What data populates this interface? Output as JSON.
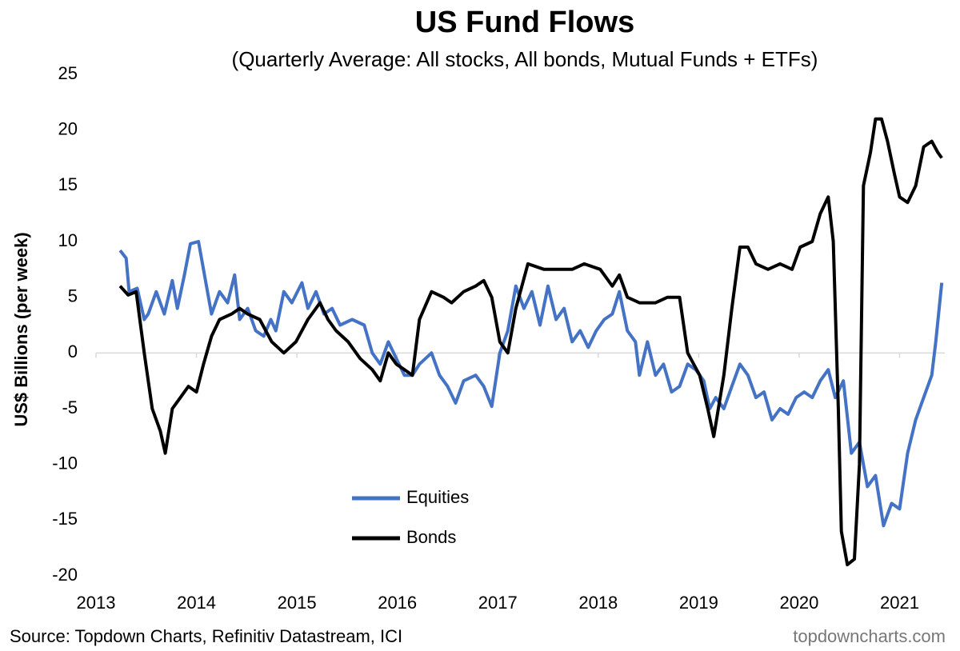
{
  "chart_data": {
    "type": "line",
    "title": "US Fund Flows",
    "subtitle": "(Quarterly Average: All stocks, All bonds, Mutual Funds + ETFs)",
    "y_label": "US$ Billions  (per week)",
    "source": "Source: Topdown Charts, Refinitiv Datastream, ICI",
    "watermark": "topdowncharts.com",
    "xlim": [
      2013,
      2021.45
    ],
    "xticks": [
      2013,
      2014,
      2015,
      2016,
      2017,
      2018,
      2019,
      2020,
      2021
    ],
    "ylim": [
      -20,
      25
    ],
    "yticks": [
      -20,
      -15,
      -10,
      -5,
      0,
      5,
      10,
      15,
      20,
      25
    ],
    "grid": false,
    "zero_line": true,
    "legend": "lower center",
    "series": [
      {
        "name": "Equities",
        "color": "#4472c4",
        "x": [
          2013.24,
          2013.3,
          2013.33,
          2013.41,
          2013.48,
          2013.52,
          2013.6,
          2013.68,
          2013.76,
          2013.81,
          2013.88,
          2013.94,
          2014.02,
          2014.1,
          2014.15,
          2014.23,
          2014.31,
          2014.38,
          2014.43,
          2014.51,
          2014.59,
          2014.67,
          2014.74,
          2014.79,
          2014.87,
          2014.95,
          2015.05,
          2015.11,
          2015.19,
          2015.27,
          2015.35,
          2015.43,
          2015.55,
          2015.67,
          2015.75,
          2015.83,
          2015.91,
          2015.99,
          2016.07,
          2016.15,
          2016.22,
          2016.34,
          2016.42,
          2016.5,
          2016.58,
          2016.66,
          2016.78,
          2016.86,
          2016.94,
          2017.02,
          2017.1,
          2017.18,
          2017.26,
          2017.34,
          2017.42,
          2017.5,
          2017.58,
          2017.66,
          2017.74,
          2017.82,
          2017.9,
          2017.98,
          2018.06,
          2018.14,
          2018.21,
          2018.29,
          2018.37,
          2018.41,
          2018.49,
          2018.57,
          2018.65,
          2018.73,
          2018.81,
          2018.89,
          2018.97,
          2019.05,
          2019.11,
          2019.17,
          2019.25,
          2019.33,
          2019.41,
          2019.49,
          2019.57,
          2019.65,
          2019.73,
          2019.81,
          2019.89,
          2019.97,
          2020.05,
          2020.13,
          2020.21,
          2020.29,
          2020.36,
          2020.44,
          2020.52,
          2020.6,
          2020.68,
          2020.76,
          2020.84,
          2020.92,
          2021.0,
          2021.08,
          2021.16,
          2021.24,
          2021.32,
          2021.36,
          2021.42
        ],
        "values": [
          9.2,
          8.5,
          5.5,
          5.8,
          3,
          3.5,
          5.5,
          3.5,
          6.5,
          4,
          7,
          9.8,
          10,
          6,
          3.5,
          5.5,
          4.5,
          7,
          3,
          4,
          2,
          1.5,
          3,
          2,
          5.5,
          4.5,
          6.3,
          4,
          5.5,
          3.5,
          4,
          2.5,
          3,
          2.5,
          0,
          -1,
          1,
          -0.5,
          -2,
          -2,
          -1,
          0,
          -2,
          -3,
          -4.5,
          -2.5,
          -2,
          -3,
          -4.8,
          0,
          2,
          6,
          4,
          5.5,
          2.5,
          6,
          3,
          4,
          1,
          2,
          0.5,
          2,
          3,
          3.5,
          5.5,
          2,
          1,
          -2,
          1,
          -2,
          -1,
          -3.5,
          -3,
          -1,
          -1.5,
          -2.5,
          -5,
          -4,
          -5,
          -3,
          -1,
          -2,
          -4,
          -3.5,
          -6,
          -5,
          -5.5,
          -4,
          -3.5,
          -4,
          -2.5,
          -1.5,
          -4,
          -2.5,
          -9,
          -8,
          -12,
          -11,
          -15.5,
          -13.5,
          -14,
          -9,
          -6,
          -4,
          -2,
          1,
          6.3
        ]
      },
      {
        "name": "Bonds",
        "color": "#000000",
        "x": [
          2013.24,
          2013.32,
          2013.4,
          2013.48,
          2013.56,
          2013.64,
          2013.69,
          2013.76,
          2013.84,
          2013.92,
          2014.0,
          2014.07,
          2014.15,
          2014.23,
          2014.35,
          2014.43,
          2014.51,
          2014.63,
          2014.75,
          2014.87,
          2014.99,
          2015.11,
          2015.23,
          2015.31,
          2015.39,
          2015.51,
          2015.63,
          2015.75,
          2015.83,
          2015.91,
          2015.99,
          2016.07,
          2016.15,
          2016.22,
          2016.34,
          2016.46,
          2016.54,
          2016.66,
          2016.78,
          2016.86,
          2016.94,
          2017.02,
          2017.1,
          2017.18,
          2017.3,
          2017.46,
          2017.62,
          2017.74,
          2017.86,
          2018.02,
          2018.14,
          2018.21,
          2018.29,
          2018.41,
          2018.57,
          2018.69,
          2018.81,
          2018.89,
          2019.01,
          2019.09,
          2019.15,
          2019.25,
          2019.33,
          2019.41,
          2019.49,
          2019.57,
          2019.69,
          2019.81,
          2019.93,
          2020.01,
          2020.13,
          2020.21,
          2020.29,
          2020.34,
          2020.39,
          2020.42,
          2020.48,
          2020.55,
          2020.6,
          2020.64,
          2020.71,
          2020.76,
          2020.82,
          2020.88,
          2020.95,
          2021.0,
          2021.08,
          2021.16,
          2021.24,
          2021.32,
          2021.38,
          2021.42
        ],
        "values": [
          6,
          5.2,
          5.5,
          0,
          -5,
          -7,
          -9,
          -5,
          -4,
          -3,
          -3.5,
          -1,
          1.5,
          3,
          3.5,
          4,
          3.5,
          3,
          1,
          0,
          1,
          3,
          4.5,
          3,
          2,
          1,
          -0.5,
          -1.5,
          -2.5,
          0,
          -1,
          -1.5,
          -2,
          3,
          5.5,
          5,
          4.5,
          5.5,
          6,
          6.5,
          5,
          1,
          0,
          4,
          8,
          7.5,
          7.5,
          7.5,
          8,
          7.5,
          6,
          7,
          5,
          4.5,
          4.5,
          5,
          5,
          0,
          -2,
          -5,
          -7.5,
          -2,
          4,
          9.5,
          9.5,
          8,
          7.5,
          8,
          7.5,
          9.5,
          10,
          12.5,
          14,
          10,
          -5,
          -16,
          -19,
          -18.5,
          -10,
          15,
          18,
          21,
          21,
          19,
          16,
          14,
          13.5,
          15,
          18.5,
          19,
          18,
          17.5
        ]
      }
    ]
  }
}
